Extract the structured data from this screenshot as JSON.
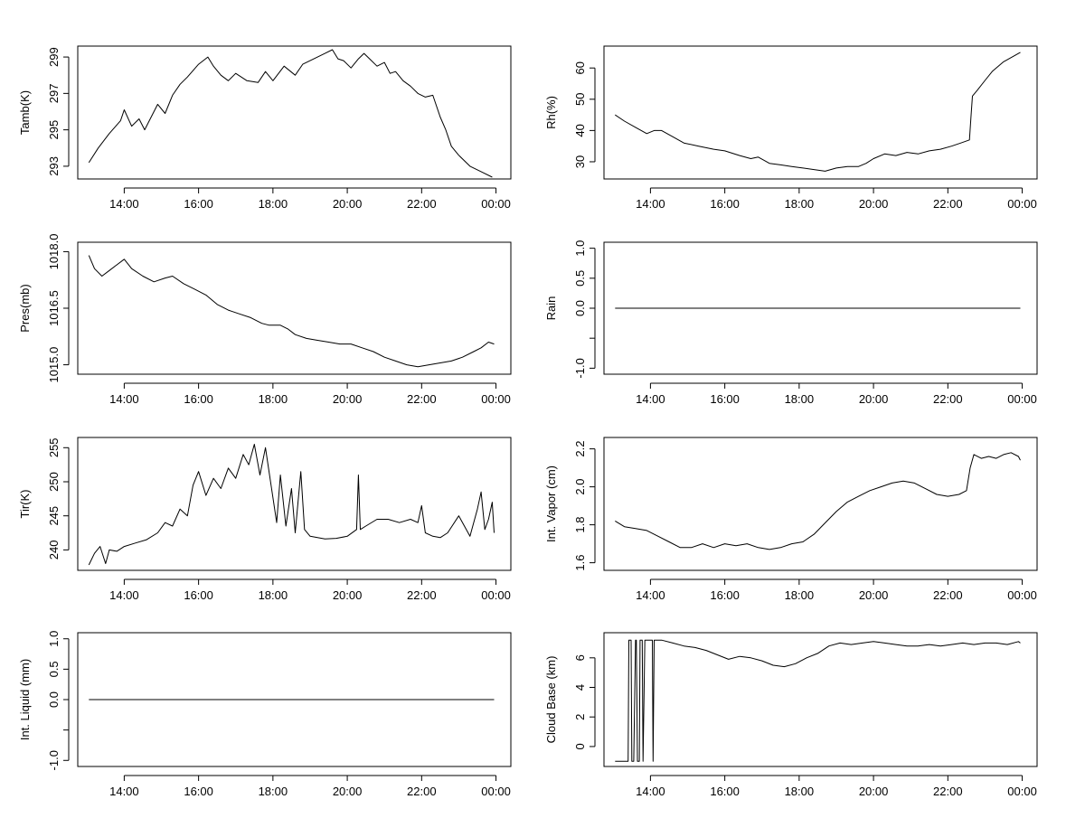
{
  "chart_data": [
    {
      "type": "line",
      "ylabel": "Tamb(K)",
      "ylim": [
        292.3,
        299.6
      ],
      "yticks": [
        293,
        295,
        297,
        299
      ],
      "xticks": [
        "14:00",
        "16:00",
        "18:00",
        "20:00",
        "22:00",
        "00:00"
      ],
      "xlim": [
        12.75,
        24.4
      ],
      "series": [
        {
          "x": [
            13.05,
            13.3,
            13.6,
            13.9,
            14.0,
            14.2,
            14.4,
            14.55,
            14.75,
            14.9,
            15.1,
            15.3,
            15.5,
            15.7,
            16.0,
            16.25,
            16.4,
            16.6,
            16.8,
            17.0,
            17.3,
            17.6,
            17.8,
            18.0,
            18.3,
            18.6,
            18.8,
            19.1,
            19.4,
            19.6,
            19.75,
            19.9,
            20.1,
            20.3,
            20.45,
            20.6,
            20.8,
            21.0,
            21.15,
            21.3,
            21.5,
            21.7,
            21.9,
            22.1,
            22.3,
            22.5,
            22.65,
            22.8,
            23.0,
            23.3,
            23.6,
            23.9
          ],
          "y": [
            293.2,
            294.0,
            294.8,
            295.5,
            296.1,
            295.2,
            295.6,
            295.0,
            295.8,
            296.4,
            295.9,
            296.9,
            297.5,
            297.9,
            298.6,
            299.0,
            298.5,
            298.0,
            297.7,
            298.1,
            297.7,
            297.6,
            298.2,
            297.7,
            298.5,
            298.0,
            298.6,
            298.9,
            299.2,
            299.4,
            298.9,
            298.8,
            298.4,
            298.9,
            299.2,
            298.9,
            298.5,
            298.7,
            298.1,
            298.2,
            297.7,
            297.4,
            297.0,
            296.8,
            296.9,
            295.7,
            295.0,
            294.1,
            293.6,
            293.0,
            292.7,
            292.4
          ]
        }
      ]
    },
    {
      "type": "line",
      "ylabel": "Rh(%)",
      "ylim": [
        24.5,
        67
      ],
      "yticks": [
        30,
        40,
        50,
        60
      ],
      "xticks": [
        "14:00",
        "16:00",
        "18:00",
        "20:00",
        "22:00",
        "00:00"
      ],
      "xlim": [
        12.75,
        24.4
      ],
      "series": [
        {
          "x": [
            13.05,
            13.3,
            13.6,
            13.9,
            14.1,
            14.3,
            14.6,
            14.9,
            15.3,
            15.7,
            16.0,
            16.4,
            16.7,
            16.9,
            17.2,
            17.5,
            17.8,
            18.1,
            18.4,
            18.7,
            19.0,
            19.3,
            19.6,
            19.8,
            20.0,
            20.3,
            20.6,
            20.9,
            21.2,
            21.5,
            21.8,
            22.1,
            22.35,
            22.58,
            22.62,
            22.66,
            22.8,
            23.0,
            23.2,
            23.5,
            23.8,
            23.95
          ],
          "y": [
            45,
            43,
            41,
            39,
            40,
            40,
            38,
            36,
            35,
            34,
            33.5,
            32,
            31,
            31.5,
            29.5,
            29,
            28.5,
            28,
            27.5,
            27,
            28,
            28.5,
            28.5,
            29.5,
            31,
            32.5,
            32,
            33,
            32.5,
            33.5,
            34,
            35,
            36,
            37,
            44,
            51,
            53,
            56,
            59,
            62,
            64,
            65
          ]
        }
      ]
    },
    {
      "type": "line",
      "ylabel": "Pres(mb)",
      "ylim": [
        1014.75,
        1018.25
      ],
      "yticks": [
        1015.0,
        1016.5,
        1018.0
      ],
      "ytick_labels": [
        "1015.0",
        "1016.5",
        "1018.0"
      ],
      "xticks": [
        "14:00",
        "16:00",
        "18:00",
        "20:00",
        "22:00",
        "00:00"
      ],
      "xlim": [
        12.75,
        24.4
      ],
      "series": [
        {
          "x": [
            13.05,
            13.2,
            13.4,
            13.6,
            13.8,
            14.0,
            14.2,
            14.5,
            14.8,
            15.1,
            15.3,
            15.6,
            15.9,
            16.2,
            16.5,
            16.8,
            17.1,
            17.4,
            17.7,
            17.9,
            18.2,
            18.4,
            18.6,
            18.9,
            19.2,
            19.5,
            19.8,
            20.1,
            20.4,
            20.7,
            21.0,
            21.3,
            21.6,
            21.9,
            22.2,
            22.5,
            22.8,
            23.1,
            23.4,
            23.6,
            23.8,
            23.95
          ],
          "y": [
            1017.9,
            1017.55,
            1017.35,
            1017.5,
            1017.65,
            1017.8,
            1017.55,
            1017.35,
            1017.2,
            1017.3,
            1017.35,
            1017.15,
            1017.0,
            1016.85,
            1016.6,
            1016.45,
            1016.35,
            1016.25,
            1016.1,
            1016.05,
            1016.05,
            1015.95,
            1015.8,
            1015.7,
            1015.65,
            1015.6,
            1015.55,
            1015.55,
            1015.45,
            1015.35,
            1015.2,
            1015.1,
            1015.0,
            1014.95,
            1015.0,
            1015.05,
            1015.1,
            1015.2,
            1015.35,
            1015.45,
            1015.6,
            1015.55
          ]
        }
      ]
    },
    {
      "type": "line",
      "ylabel": "Rain",
      "ylim": [
        -1.1,
        1.1
      ],
      "yticks": [
        -1.0,
        -0.5,
        0.0,
        0.5,
        1.0
      ],
      "ytick_labels": [
        "-1.0",
        "",
        "0.0",
        "0.5",
        "1.0"
      ],
      "xticks": [
        "14:00",
        "16:00",
        "18:00",
        "20:00",
        "22:00",
        "00:00"
      ],
      "xlim": [
        12.75,
        24.4
      ],
      "series": [
        {
          "x": [
            13.05,
            23.95
          ],
          "y": [
            0,
            0
          ]
        }
      ]
    },
    {
      "type": "line",
      "ylabel": "Tir(K)",
      "ylim": [
        237,
        256.5
      ],
      "yticks": [
        240,
        245,
        250,
        255
      ],
      "xticks": [
        "14:00",
        "16:00",
        "18:00",
        "20:00",
        "22:00",
        "00:00"
      ],
      "xlim": [
        12.75,
        24.4
      ],
      "series": [
        {
          "x": [
            13.05,
            13.2,
            13.35,
            13.5,
            13.6,
            13.8,
            14.0,
            14.3,
            14.6,
            14.9,
            15.1,
            15.3,
            15.5,
            15.7,
            15.85,
            16.0,
            16.2,
            16.4,
            16.6,
            16.8,
            17.0,
            17.2,
            17.35,
            17.5,
            17.65,
            17.8,
            17.95,
            18.1,
            18.2,
            18.35,
            18.5,
            18.6,
            18.75,
            18.85,
            19.0,
            19.2,
            19.4,
            19.7,
            20.0,
            20.25,
            20.3,
            20.35,
            20.5,
            20.8,
            21.1,
            21.4,
            21.7,
            21.9,
            22.0,
            22.1,
            22.3,
            22.5,
            22.7,
            23.0,
            23.3,
            23.5,
            23.6,
            23.7,
            23.8,
            23.9,
            23.95
          ],
          "y": [
            237.8,
            239.5,
            240.5,
            238.0,
            240.0,
            239.8,
            240.5,
            241.0,
            241.5,
            242.5,
            244.0,
            243.5,
            246.0,
            245.0,
            249.5,
            251.5,
            248.0,
            250.5,
            249.0,
            252.0,
            250.5,
            254.0,
            252.5,
            255.5,
            251.0,
            255.0,
            249.5,
            244.0,
            251.0,
            243.5,
            249.0,
            242.5,
            251.5,
            243.0,
            242.0,
            241.8,
            241.6,
            241.7,
            242.0,
            243.0,
            251.0,
            243.0,
            243.5,
            244.5,
            244.5,
            244.0,
            244.5,
            244.0,
            246.5,
            242.5,
            242.0,
            241.8,
            242.5,
            245.0,
            242.0,
            246.0,
            248.5,
            243.0,
            244.5,
            247.0,
            242.5
          ]
        }
      ]
    },
    {
      "type": "line",
      "ylabel": "Int. Vapor (cm)",
      "ylim": [
        1.56,
        2.26
      ],
      "yticks": [
        1.6,
        1.8,
        2.0,
        2.2
      ],
      "ytick_labels": [
        "1.6",
        "1.8",
        "2.0",
        "2.2"
      ],
      "xticks": [
        "14:00",
        "16:00",
        "18:00",
        "20:00",
        "22:00",
        "00:00"
      ],
      "xlim": [
        12.75,
        24.4
      ],
      "series": [
        {
          "x": [
            13.05,
            13.3,
            13.6,
            13.9,
            14.2,
            14.5,
            14.8,
            15.1,
            15.4,
            15.7,
            16.0,
            16.3,
            16.6,
            16.9,
            17.2,
            17.5,
            17.8,
            18.1,
            18.4,
            18.7,
            19.0,
            19.3,
            19.6,
            19.9,
            20.2,
            20.5,
            20.8,
            21.1,
            21.4,
            21.7,
            22.0,
            22.3,
            22.5,
            22.6,
            22.7,
            22.9,
            23.1,
            23.3,
            23.5,
            23.7,
            23.9,
            23.95
          ],
          "y": [
            1.82,
            1.79,
            1.78,
            1.77,
            1.74,
            1.71,
            1.68,
            1.68,
            1.7,
            1.68,
            1.7,
            1.69,
            1.7,
            1.68,
            1.67,
            1.68,
            1.7,
            1.71,
            1.75,
            1.81,
            1.87,
            1.92,
            1.95,
            1.98,
            2.0,
            2.02,
            2.03,
            2.02,
            1.99,
            1.96,
            1.95,
            1.96,
            1.98,
            2.1,
            2.17,
            2.15,
            2.16,
            2.15,
            2.17,
            2.18,
            2.16,
            2.14
          ]
        }
      ]
    },
    {
      "type": "line",
      "ylabel": "Int. Liquid (mm)",
      "ylim": [
        -1.1,
        1.1
      ],
      "yticks": [
        -1.0,
        -0.5,
        0.0,
        0.5,
        1.0
      ],
      "ytick_labels": [
        "-1.0",
        "",
        "0.0",
        "0.5",
        "1.0"
      ],
      "xticks": [
        "14:00",
        "16:00",
        "18:00",
        "20:00",
        "22:00",
        "00:00"
      ],
      "xlim": [
        12.75,
        24.4
      ],
      "series": [
        {
          "x": [
            13.05,
            23.95
          ],
          "y": [
            0,
            0
          ]
        }
      ]
    },
    {
      "type": "line",
      "ylabel": "Cloud Base (km)",
      "ylim": [
        -1.35,
        7.7
      ],
      "yticks": [
        0,
        2,
        4,
        6
      ],
      "ytick_labels": [
        "0",
        "2",
        "4",
        "6"
      ],
      "xticks": [
        "14:00",
        "16:00",
        "18:00",
        "20:00",
        "22:00",
        "00:00"
      ],
      "xlim": [
        12.75,
        24.4
      ],
      "series": [
        {
          "x": [
            13.05,
            13.3,
            13.4,
            13.42,
            13.48,
            13.5,
            13.55,
            13.6,
            13.62,
            13.65,
            13.7,
            13.72,
            13.78,
            13.8,
            13.85,
            13.88,
            14.0,
            14.05,
            14.07,
            14.1,
            14.3,
            14.6,
            14.9,
            15.2,
            15.5,
            15.8,
            16.1,
            16.4,
            16.7,
            17.0,
            17.3,
            17.6,
            17.9,
            18.2,
            18.5,
            18.8,
            19.1,
            19.4,
            19.7,
            20.0,
            20.3,
            20.6,
            20.9,
            21.2,
            21.5,
            21.8,
            22.1,
            22.4,
            22.7,
            23.0,
            23.3,
            23.6,
            23.9,
            23.95
          ],
          "y": [
            -1,
            -1,
            -1,
            7.2,
            7.2,
            -1,
            -1,
            7.2,
            7.2,
            -1,
            -1,
            7.2,
            7.2,
            -1,
            7.2,
            7.2,
            7.2,
            7.2,
            -1,
            7.2,
            7.2,
            7.0,
            6.8,
            6.7,
            6.5,
            6.2,
            5.9,
            6.1,
            6.0,
            5.8,
            5.5,
            5.4,
            5.6,
            6.0,
            6.3,
            6.8,
            7.0,
            6.9,
            7.0,
            7.1,
            7.0,
            6.9,
            6.8,
            6.8,
            6.9,
            6.8,
            6.9,
            7.0,
            6.9,
            7.0,
            7.0,
            6.9,
            7.1,
            7.0
          ]
        }
      ]
    }
  ]
}
